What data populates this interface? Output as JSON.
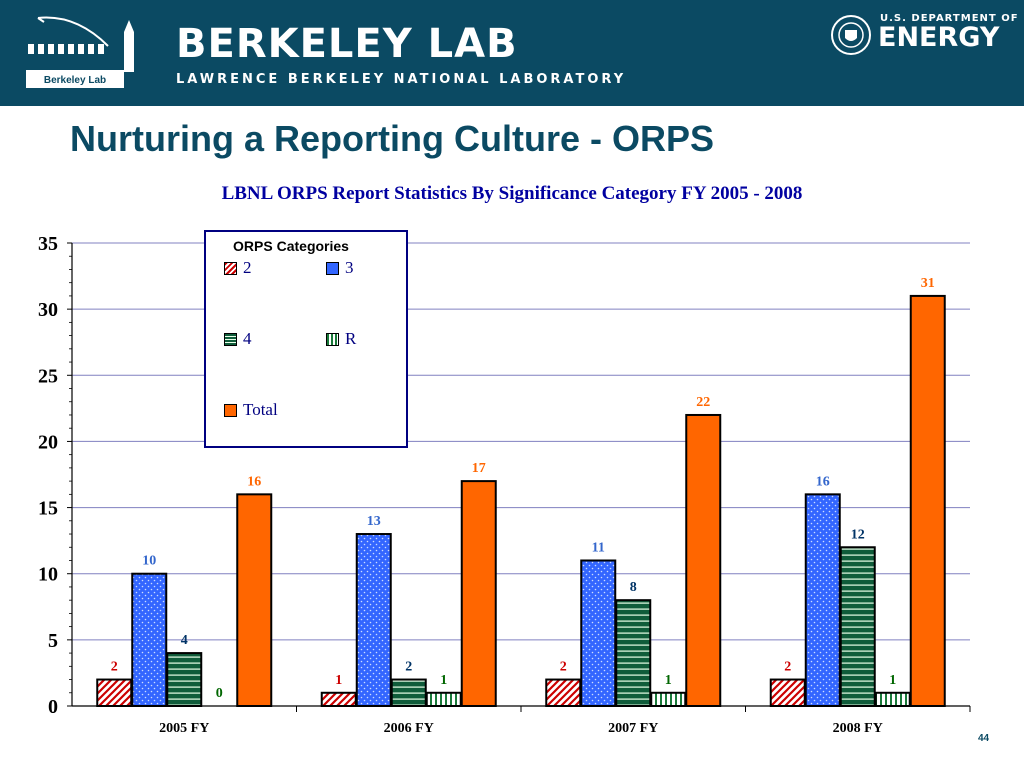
{
  "header": {
    "logo_caption": "Berkeley Lab",
    "lab_name": "BERKELEY LAB",
    "lab_subtitle": "LAWRENCE BERKELEY NATIONAL LABORATORY",
    "doe_small": "U.S. DEPARTMENT OF",
    "doe_big": "ENERGY"
  },
  "slide": {
    "title": "Nurturing a Reporting Culture - ORPS",
    "page_number": "44"
  },
  "chart_data": {
    "type": "bar",
    "title": "LBNL ORPS Report Statistics By Significance Category FY 2005 - 2008",
    "xlabel": "",
    "ylabel": "",
    "categories": [
      "2005 FY",
      "2006 FY",
      "2007 FY",
      "2008 FY"
    ],
    "ylim": [
      0,
      35
    ],
    "yticks": [
      0,
      5,
      10,
      15,
      20,
      25,
      30,
      35
    ],
    "grid": true,
    "legend_title": "ORPS Categories",
    "legend_placement": "top-left",
    "series": [
      {
        "name": "2",
        "values": [
          2,
          1,
          2,
          2
        ],
        "color": "#cc0000",
        "pattern": "diag-red",
        "label_color": "#cc0000"
      },
      {
        "name": "3",
        "values": [
          10,
          13,
          11,
          16
        ],
        "color": "#3366ff",
        "pattern": "dots-blue",
        "label_color": "#3366cc"
      },
      {
        "name": "4",
        "values": [
          4,
          2,
          8,
          12
        ],
        "color": "#0f5c3a",
        "pattern": "hstripe-green",
        "label_color": "#003366"
      },
      {
        "name": "R",
        "values": [
          0,
          1,
          1,
          1
        ],
        "color": "#1a7a3a",
        "pattern": "vstripe-green",
        "label_color": "#006600"
      },
      {
        "name": "Total",
        "values": [
          16,
          17,
          22,
          31
        ],
        "color": "#ff6600",
        "pattern": "solid-orange",
        "label_color": "#ff6600"
      }
    ]
  }
}
